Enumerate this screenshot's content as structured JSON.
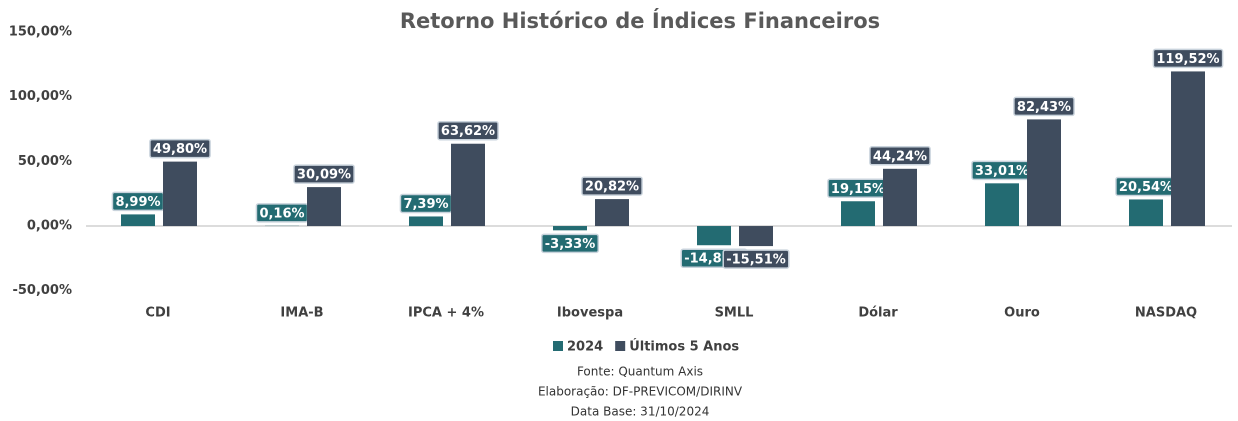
{
  "chart_data": {
    "type": "bar",
    "title": "Retorno Histórico de Índices Financeiros",
    "categories": [
      "CDI",
      "IMA-B",
      "IPCA + 4%",
      "Ibovespa",
      "SMLL",
      "Dólar",
      "Ouro",
      "NASDAQ"
    ],
    "series": [
      {
        "name": "2024",
        "color": "#236b72",
        "values": [
          8.99,
          0.16,
          7.39,
          -3.33,
          -14.85,
          19.15,
          33.01,
          20.54
        ],
        "value_labels": [
          "8,99%",
          "0,16%",
          "7,39%",
          "-3,33%",
          "-14,85%",
          "19,15%",
          "33,01%",
          "20,54%"
        ]
      },
      {
        "name": "Últimos 5 Anos",
        "color": "#3f4c5e",
        "values": [
          49.8,
          30.09,
          63.62,
          20.82,
          -15.51,
          44.24,
          82.43,
          119.52
        ],
        "value_labels": [
          "49,80%",
          "30,09%",
          "63,62%",
          "20,82%",
          "-15,51%",
          "44,24%",
          "82,43%",
          "119,52%"
        ]
      }
    ],
    "ylim": [
      -50,
      150
    ],
    "yticks": [
      {
        "value": -50,
        "label": "-50,00%"
      },
      {
        "value": 0,
        "label": "0,00%"
      },
      {
        "value": 50,
        "label": "50,00%"
      },
      {
        "value": 100,
        "label": "100,00%"
      },
      {
        "value": 150,
        "label": "150,00%"
      }
    ],
    "grid": false,
    "legend": "bottom",
    "footer": [
      "Fonte: Quantum Axis",
      "Elaboração: DF-PREVICOM/DIRINV",
      "Data Base: 31/10/2024"
    ]
  }
}
